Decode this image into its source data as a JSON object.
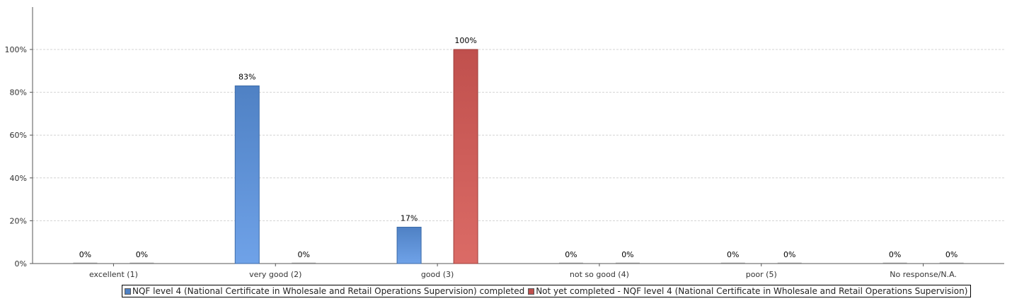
{
  "chart_data": {
    "type": "bar",
    "categories": [
      "excellent (1)",
      "very good (2)",
      "good (3)",
      "not so good (4)",
      "poor (5)",
      "No response/N.A."
    ],
    "series": [
      {
        "name": "NQF level 4 (National Certificate in Wholesale and Retail Operations Supervision) completed",
        "values": [
          0,
          83,
          17,
          0,
          0,
          0
        ],
        "color": "#4f81c4"
      },
      {
        "name": "Not yet completed - NQF level 4 (National Certificate in Wholesale and Retail Operations Supervision)",
        "values": [
          0,
          0,
          100,
          0,
          0,
          0
        ],
        "color": "#c0504d"
      }
    ],
    "data_labels": [
      [
        "0%",
        "83%",
        "17%",
        "0%",
        "0%",
        "0%"
      ],
      [
        "0%",
        "0%",
        "100%",
        "0%",
        "0%",
        "0%"
      ]
    ],
    "y_ticks": [
      0,
      20,
      40,
      60,
      80,
      100
    ],
    "y_tick_labels": [
      "0%",
      "20%",
      "40%",
      "60%",
      "80%",
      "100%"
    ],
    "ylim": [
      0,
      120
    ],
    "grid": true,
    "legend_position": "bottom"
  }
}
